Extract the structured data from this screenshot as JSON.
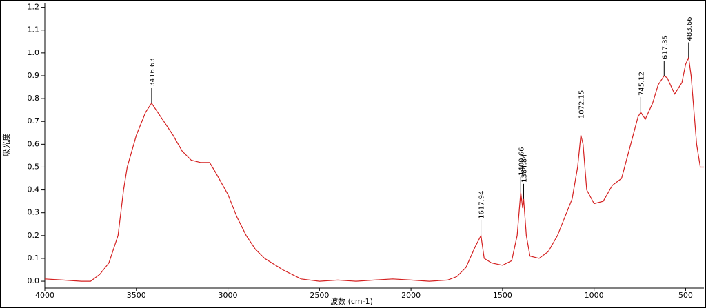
{
  "chart_data": {
    "type": "line",
    "xlabel": "波数 (cm-1)",
    "ylabel": "吸光度",
    "xlim": [
      4000,
      400
    ],
    "ylim": [
      -0.03,
      1.22
    ],
    "xticks": [
      4000,
      3500,
      3000,
      2500,
      2000,
      1500,
      1000,
      500
    ],
    "yticks": [
      {
        "value": 0,
        "label": "0.0"
      },
      0.1,
      0.2,
      0.3,
      0.4,
      0.5,
      0.6,
      0.7,
      0.8,
      0.9,
      {
        "value": 1,
        "label": "1.0"
      },
      1.1,
      1.2
    ],
    "series": [
      {
        "color": "#d42020",
        "x": [
          4000,
          3900,
          3800,
          3750,
          3700,
          3650,
          3600,
          3570,
          3550,
          3500,
          3450,
          3416.63,
          3400,
          3350,
          3300,
          3250,
          3200,
          3150,
          3100,
          3070,
          3000,
          2950,
          2900,
          2850,
          2800,
          2700,
          2600,
          2500,
          2400,
          2300,
          2200,
          2100,
          2000,
          1900,
          1800,
          1750,
          1700,
          1650,
          1617.94,
          1600,
          1560,
          1500,
          1450,
          1420,
          1400.66,
          1390,
          1384.84,
          1370,
          1350,
          1300,
          1250,
          1200,
          1150,
          1120,
          1090,
          1072.15,
          1060,
          1040,
          1000,
          950,
          900,
          850,
          800,
          760,
          745.12,
          720,
          680,
          650,
          617.35,
          600,
          560,
          520,
          500,
          483.66,
          470,
          440,
          420,
          400
        ],
        "values": [
          0.01,
          0.005,
          0,
          0,
          0.03,
          0.08,
          0.2,
          0.4,
          0.5,
          0.64,
          0.74,
          0.78,
          0.76,
          0.7,
          0.64,
          0.57,
          0.53,
          0.52,
          0.52,
          0.48,
          0.38,
          0.28,
          0.2,
          0.14,
          0.1,
          0.05,
          0.01,
          0,
          0.005,
          0,
          0.005,
          0.01,
          0.005,
          0,
          0.005,
          0.02,
          0.06,
          0.15,
          0.2,
          0.1,
          0.08,
          0.07,
          0.09,
          0.2,
          0.39,
          0.32,
          0.36,
          0.2,
          0.11,
          0.1,
          0.13,
          0.2,
          0.3,
          0.36,
          0.5,
          0.64,
          0.6,
          0.4,
          0.34,
          0.35,
          0.42,
          0.45,
          0.6,
          0.72,
          0.74,
          0.71,
          0.78,
          0.86,
          0.9,
          0.89,
          0.82,
          0.87,
          0.95,
          0.98,
          0.9,
          0.6,
          0.5,
          0.5
        ]
      }
    ],
    "peaks": [
      {
        "x": 3416.63,
        "y": 0.78
      },
      {
        "x": 1617.94,
        "y": 0.2
      },
      {
        "x": 1400.66,
        "y": 0.39
      },
      {
        "x": 1384.84,
        "y": 0.36
      },
      {
        "x": 1072.15,
        "y": 0.64
      },
      {
        "x": 745.12,
        "y": 0.74
      },
      {
        "x": 617.35,
        "y": 0.9
      },
      {
        "x": 483.66,
        "y": 0.98
      }
    ]
  }
}
